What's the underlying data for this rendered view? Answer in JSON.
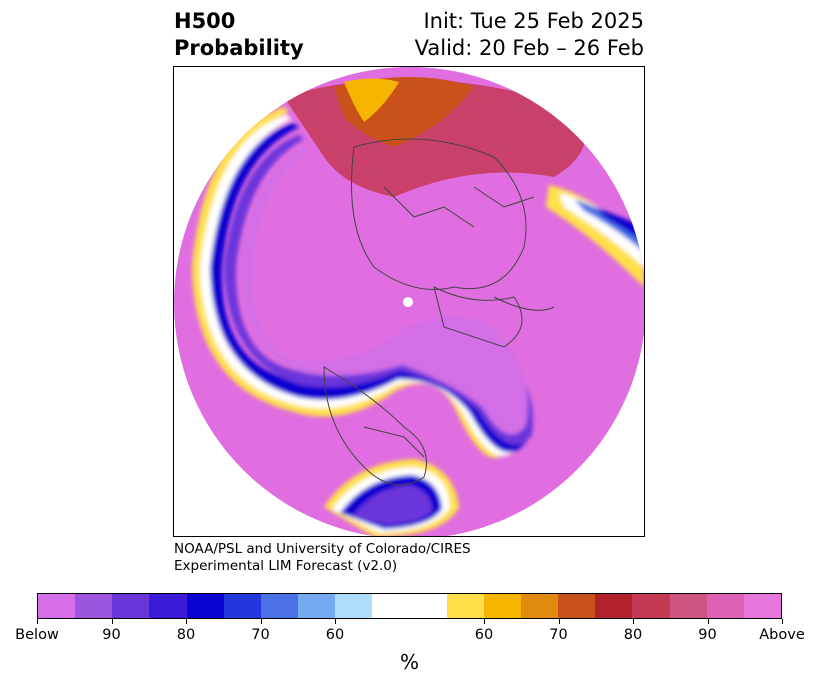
{
  "header": {
    "title_line1": "H500",
    "title_line2": "Probability",
    "init": "Init: Tue 25 Feb 2025",
    "valid": "Valid: 20 Feb – 26 Feb"
  },
  "credit": {
    "line1": "NOAA/PSL and University of Colorado/CIRES",
    "line2": "Experimental LIM Forecast (v2.0)"
  },
  "colorbar": {
    "colors": [
      "#d66ee8",
      "#9b55e0",
      "#6a35db",
      "#3a1bd8",
      "#0a04d0",
      "#2238dd",
      "#4a72e6",
      "#73aaf0",
      "#aedcfb",
      "#ffffff",
      "#ffe04a",
      "#f4b400",
      "#e08a10",
      "#c9521a",
      "#b0232a",
      "#c43a55",
      "#cf5483",
      "#dc60b4",
      "#e675dc"
    ],
    "tick_labels": [
      "Below",
      "90",
      "80",
      "70",
      "60",
      "60",
      "70",
      "80",
      "90",
      "Above"
    ],
    "unit": "%"
  },
  "map": {
    "projection": "north-polar-stereographic",
    "fill_color_background": "#e06ee0",
    "below_color": "#d36ee6"
  }
}
